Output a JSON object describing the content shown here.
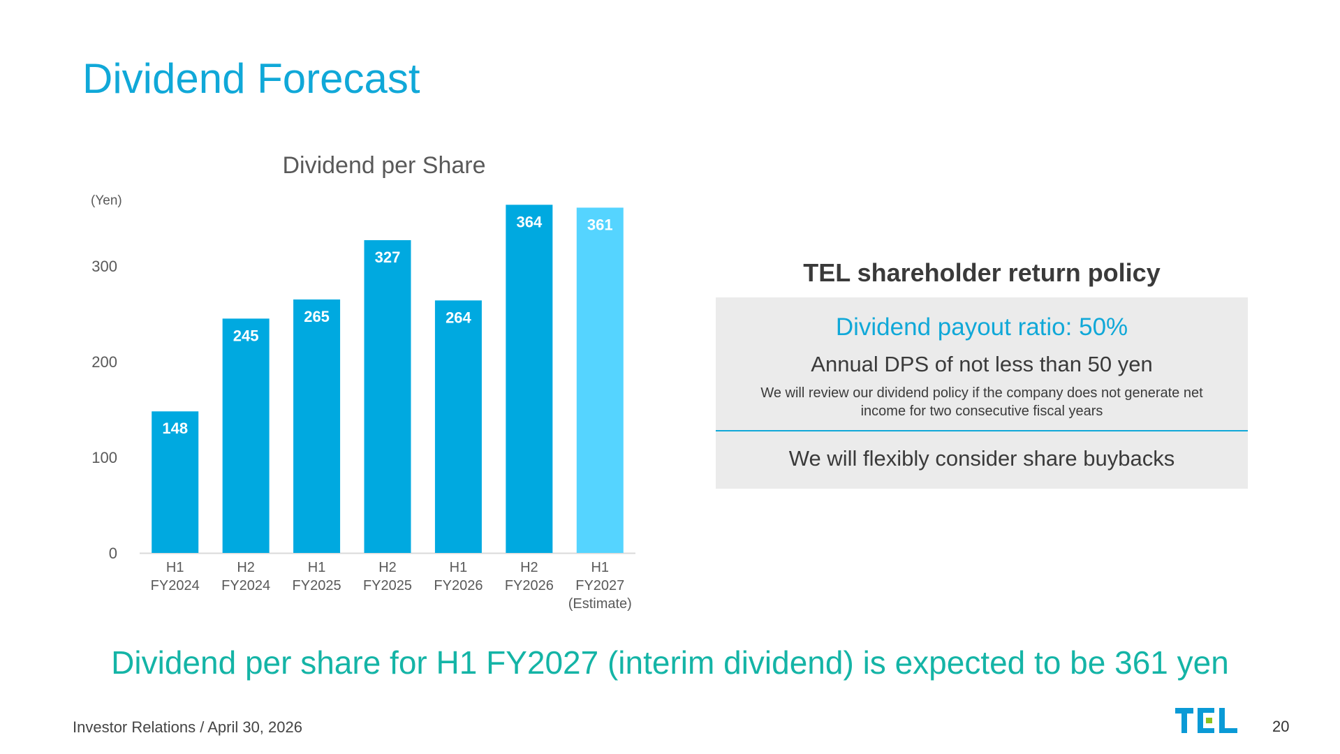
{
  "page": {
    "title": "Dividend Forecast",
    "conclusion": "Dividend per share for H1 FY2027 (interim dividend) is expected to be 361 yen",
    "footer": "Investor Relations / April 30, 2026",
    "page_number": "20",
    "logo_text": "TEL"
  },
  "policy": {
    "heading": "TEL shareholder return policy",
    "payout": "Dividend payout ratio: 50%",
    "annual": "Annual DPS of not less than 50 yen",
    "review": "We will review our dividend policy if the company does not generate net income for two consecutive fiscal years",
    "buyback": "We will flexibly consider share buybacks"
  },
  "chart_data": {
    "type": "bar",
    "title": "Dividend per Share",
    "ylabel": "(Yen)",
    "xlabel": "",
    "ylim": [
      0,
      364
    ],
    "yticks": [
      0,
      100,
      200,
      300
    ],
    "grid": false,
    "categories": [
      [
        "H1",
        "FY2024"
      ],
      [
        "H2",
        "FY2024"
      ],
      [
        "H1",
        "FY2025"
      ],
      [
        "H2",
        "FY2025"
      ],
      [
        "H1",
        "FY2026"
      ],
      [
        "H2",
        "FY2026"
      ],
      [
        "H1",
        "FY2027",
        "(Estimate)"
      ]
    ],
    "values": [
      148,
      245,
      265,
      327,
      264,
      364,
      361
    ],
    "estimate": [
      false,
      false,
      false,
      false,
      false,
      false,
      true
    ],
    "colors": {
      "actual": "#00a9e0",
      "estimate": "#55d4ff",
      "axis": "#d9d9d9",
      "tick_label": "#595959",
      "data_label": "#ffffff",
      "title": "#595959"
    }
  },
  "colors": {
    "accent": "#10a8d8",
    "conclusion": "#14b4a6",
    "policy_bg": "#ebebeb",
    "logo_blue": "#0a9ad6",
    "logo_green": "#8dc21f"
  }
}
